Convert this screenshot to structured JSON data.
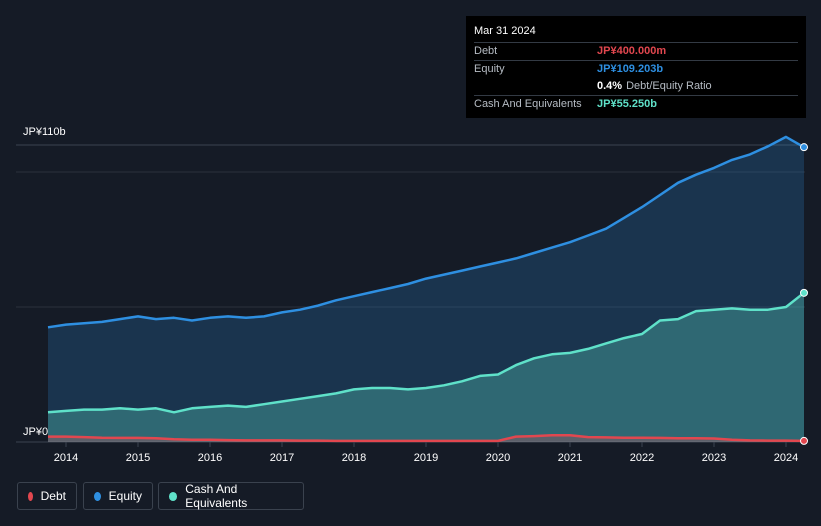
{
  "tooltip": {
    "date": "Mar 31 2024",
    "debt_label": "Debt",
    "debt_value": "JP¥400.000m",
    "equity_label": "Equity",
    "equity_value": "JP¥109.203b",
    "ratio_value": "0.4%",
    "ratio_label": "Debt/Equity Ratio",
    "cash_label": "Cash And Equivalents",
    "cash_value": "JP¥55.250b"
  },
  "legend": [
    {
      "label": "Debt",
      "color": "#e2474f"
    },
    {
      "label": "Equity",
      "color": "#2e8fe1"
    },
    {
      "label": "Cash And Equivalents",
      "color": "#5fe1c9"
    }
  ],
  "chart_data": {
    "type": "area",
    "title": "",
    "xlabel": "",
    "ylabel": "",
    "ylim": [
      0,
      110
    ],
    "xlim": [
      2013.75,
      2024.25
    ],
    "y_axis_labels": {
      "top": "JP¥110b",
      "bottom": "JP¥0"
    },
    "x_ticks": [
      2014,
      2015,
      2016,
      2017,
      2018,
      2019,
      2020,
      2021,
      2022,
      2023,
      2024
    ],
    "x_tick_labels": [
      "2014",
      "2015",
      "2016",
      "2017",
      "2018",
      "2019",
      "2020",
      "2021",
      "2022",
      "2023",
      "2024"
    ],
    "colors": {
      "debt": "#e2474f",
      "equity": "#2e8fe1",
      "cash": "#5fe1c9"
    },
    "series": [
      {
        "name": "Equity",
        "key": "equity",
        "x": [
          2013.75,
          2014.0,
          2014.25,
          2014.5,
          2014.75,
          2015.0,
          2015.25,
          2015.5,
          2015.75,
          2016.0,
          2016.25,
          2016.5,
          2016.75,
          2017.0,
          2017.25,
          2017.5,
          2017.75,
          2018.0,
          2018.25,
          2018.5,
          2018.75,
          2019.0,
          2019.25,
          2019.5,
          2019.75,
          2020.0,
          2020.25,
          2020.5,
          2020.75,
          2021.0,
          2021.25,
          2021.5,
          2021.75,
          2022.0,
          2022.25,
          2022.5,
          2022.75,
          2023.0,
          2023.25,
          2023.5,
          2023.75,
          2024.0,
          2024.25
        ],
        "values": [
          42.5,
          43.5,
          44.0,
          44.5,
          45.5,
          46.5,
          45.5,
          46.0,
          45.0,
          46.0,
          46.5,
          46.0,
          46.5,
          48.0,
          49.0,
          50.5,
          52.5,
          54.0,
          55.5,
          57.0,
          58.5,
          60.5,
          62.0,
          63.5,
          65.0,
          66.5,
          68.0,
          70.0,
          72.0,
          74.0,
          76.5,
          79.0,
          83.0,
          87.0,
          91.5,
          96.0,
          99.0,
          101.5,
          104.5,
          106.5,
          109.5,
          113.0,
          109.203
        ]
      },
      {
        "name": "Cash And Equivalents",
        "key": "cash",
        "x": [
          2013.75,
          2014.0,
          2014.25,
          2014.5,
          2014.75,
          2015.0,
          2015.25,
          2015.5,
          2015.75,
          2016.0,
          2016.25,
          2016.5,
          2016.75,
          2017.0,
          2017.25,
          2017.5,
          2017.75,
          2018.0,
          2018.25,
          2018.5,
          2018.75,
          2019.0,
          2019.25,
          2019.5,
          2019.75,
          2020.0,
          2020.25,
          2020.5,
          2020.75,
          2021.0,
          2021.25,
          2021.5,
          2021.75,
          2022.0,
          2022.25,
          2022.5,
          2022.75,
          2023.0,
          2023.25,
          2023.5,
          2023.75,
          2024.0,
          2024.25
        ],
        "values": [
          11.0,
          11.5,
          12.0,
          12.0,
          12.5,
          12.0,
          12.5,
          11.0,
          12.5,
          13.0,
          13.5,
          13.0,
          14.0,
          15.0,
          16.0,
          17.0,
          18.0,
          19.5,
          20.0,
          20.0,
          19.5,
          20.0,
          21.0,
          22.5,
          24.5,
          25.0,
          28.5,
          31.0,
          32.5,
          33.0,
          34.5,
          36.5,
          38.5,
          40.0,
          45.0,
          45.5,
          48.5,
          49.0,
          49.5,
          49.0,
          49.0,
          50.0,
          55.25
        ]
      },
      {
        "name": "Debt",
        "key": "debt",
        "x": [
          2013.75,
          2014.0,
          2014.25,
          2014.5,
          2014.75,
          2015.0,
          2015.25,
          2015.5,
          2015.75,
          2016.0,
          2016.25,
          2016.5,
          2016.75,
          2017.0,
          2017.25,
          2017.5,
          2017.75,
          2018.0,
          2018.25,
          2018.5,
          2018.75,
          2019.0,
          2019.25,
          2019.5,
          2019.75,
          2020.0,
          2020.25,
          2020.5,
          2020.75,
          2021.0,
          2021.25,
          2021.5,
          2021.75,
          2022.0,
          2022.25,
          2022.5,
          2022.75,
          2023.0,
          2023.25,
          2023.5,
          2023.75,
          2024.0,
          2024.25
        ],
        "values": [
          2.0,
          2.0,
          1.8,
          1.6,
          1.5,
          1.5,
          1.4,
          1.0,
          0.8,
          0.8,
          0.7,
          0.6,
          0.6,
          0.6,
          0.5,
          0.5,
          0.4,
          0.4,
          0.4,
          0.4,
          0.4,
          0.4,
          0.4,
          0.4,
          0.4,
          0.4,
          2.0,
          2.2,
          2.5,
          2.5,
          1.8,
          1.7,
          1.6,
          1.6,
          1.5,
          1.4,
          1.4,
          1.3,
          0.8,
          0.6,
          0.5,
          0.5,
          0.4
        ]
      }
    ]
  }
}
